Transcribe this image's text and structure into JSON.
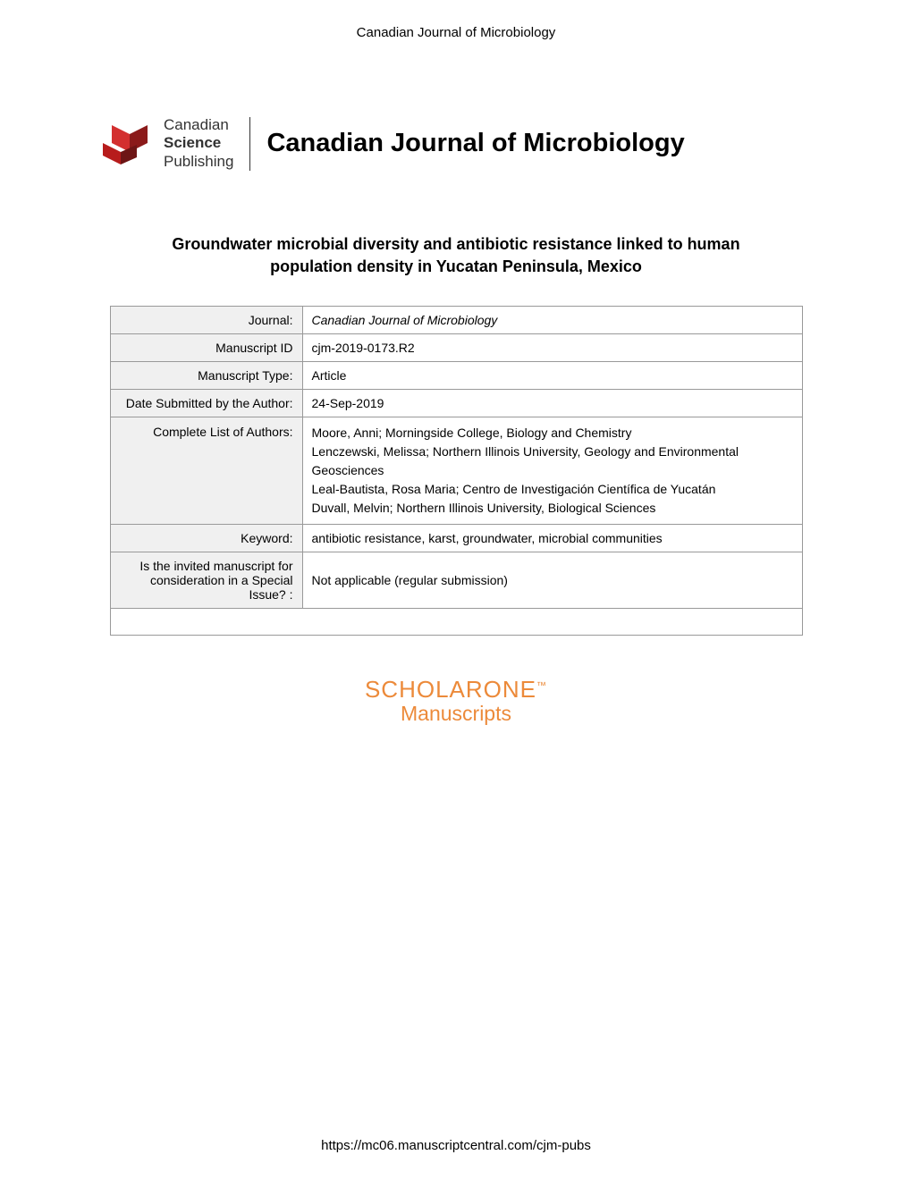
{
  "header": "Canadian Journal of Microbiology",
  "logo": {
    "line1": "Canadian",
    "line2": "Science",
    "line3": "Publishing"
  },
  "journal_title_logo": "Canadian Journal of Microbiology",
  "article_title": "Groundwater microbial diversity and antibiotic resistance linked to human population density in Yucatan Peninsula, Mexico",
  "table": {
    "journal_label": "Journal:",
    "journal_value": "Canadian Journal of Microbiology",
    "manuscript_id_label": "Manuscript ID",
    "manuscript_id_value": "cjm-2019-0173.R2",
    "manuscript_type_label": "Manuscript Type:",
    "manuscript_type_value": "Article",
    "date_label": "Date Submitted by the Author:",
    "date_value": "24-Sep-2019",
    "authors_label": "Complete List of Authors:",
    "authors_value": "Moore, Anni; Morningside College, Biology and Chemistry\nLenczewski, Melissa; Northern Illinois University, Geology and Environmental Geosciences\nLeal-Bautista, Rosa Maria; Centro de Investigación Científica de Yucatán\nDuvall, Melvin; Northern Illinois University, Biological Sciences",
    "keyword_label": "Keyword:",
    "keyword_value": "antibiotic resistance, karst, groundwater, microbial communities",
    "special_issue_label": "Is the invited manuscript for consideration in a Special Issue? :",
    "special_issue_value": "Not applicable (regular submission)"
  },
  "scholarone": {
    "brand": "SCHOLAR",
    "one": "ONE",
    "tm": "™",
    "sub": "Manuscripts"
  },
  "footer_url": "https://mc06.manuscriptcentral.com/cjm-pubs"
}
